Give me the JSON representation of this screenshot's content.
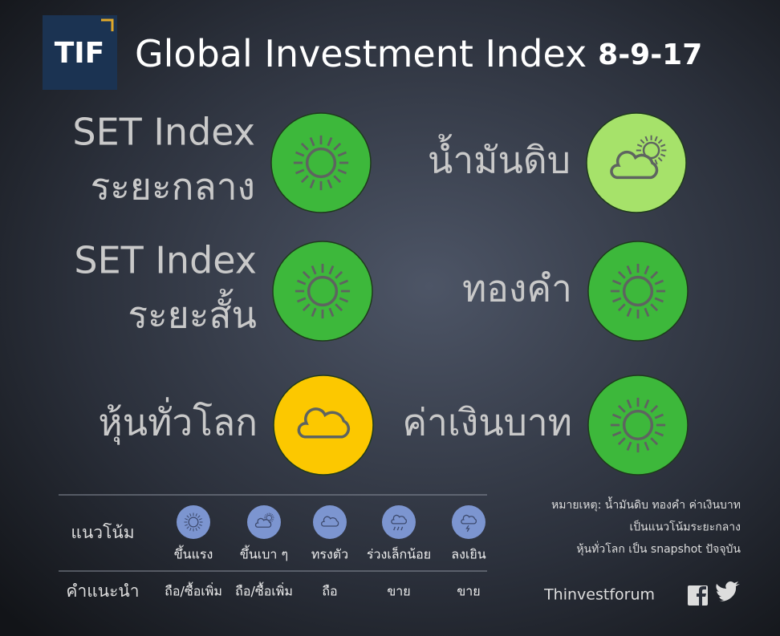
{
  "header": {
    "logo": "TIF",
    "title": "Global Investment Index",
    "date": "8-9-17"
  },
  "items": [
    {
      "lines": [
        "SET Index",
        "ระยะกลาง"
      ],
      "icon": "sun",
      "color": "#3db83b",
      "side": "left"
    },
    {
      "lines": [
        "น้ำมันดิบ"
      ],
      "icon": "partly",
      "color": "#a6e26a",
      "side": "right"
    },
    {
      "lines": [
        "SET Index",
        "ระยะสั้น"
      ],
      "icon": "sun",
      "color": "#3db83b",
      "side": "left"
    },
    {
      "lines": [
        "ทองคำ"
      ],
      "icon": "sun",
      "color": "#3db83b",
      "side": "right"
    },
    {
      "lines": [
        "หุ้นทั่วโลก"
      ],
      "icon": "cloud",
      "color": "#fcc800",
      "side": "left"
    },
    {
      "lines": [
        "ค่าเงินบาท"
      ],
      "icon": "sun",
      "color": "#3db83b",
      "side": "right"
    }
  ],
  "legend": {
    "trend_label": "แนวโน้ม",
    "advice_label": "คำแนะนำ",
    "color": "#7c95d0",
    "entries": [
      {
        "label": "ขึ้นแรง",
        "advice": "ถือ/ซื้อเพิ่ม",
        "icon": "sun"
      },
      {
        "label": "ขึ้นเบา ๆ",
        "advice": "ถือ/ซื้อเพิ่ม",
        "icon": "partly"
      },
      {
        "label": "ทรงตัว",
        "advice": "ถือ",
        "icon": "cloud"
      },
      {
        "label": "ร่วงเล็กน้อย",
        "advice": "ขาย",
        "icon": "rain"
      },
      {
        "label": "ลงเยิน",
        "advice": "ขาย",
        "icon": "storm"
      }
    ]
  },
  "note": [
    "หมายเหตุ: น้ำมันดิบ ทองคำ ค่าเงินบาท",
    "เป็นแนวโน้มระยะกลาง",
    "หุ้นทั่วโลก เป็น snapshot ปัจจุบัน"
  ],
  "footer": {
    "brand": "Thinvestforum"
  }
}
